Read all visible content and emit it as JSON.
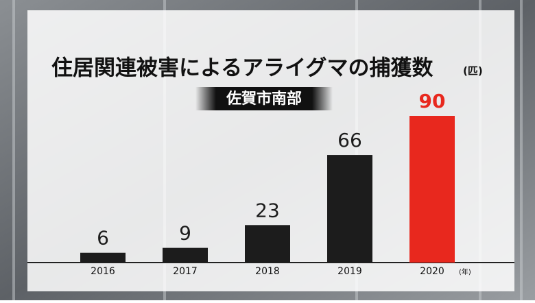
{
  "chart_data": {
    "type": "bar",
    "title": "住居関連被害によるアライグマの捕獲数",
    "y_unit": "(匹)",
    "subtitle": "佐賀市南部",
    "x_unit": "(年)",
    "categories": [
      "2016",
      "2017",
      "2018",
      "2019",
      "2020"
    ],
    "values": [
      6,
      9,
      23,
      66,
      90
    ],
    "colors": [
      "#1c1c1c",
      "#1c1c1c",
      "#1c1c1c",
      "#1c1c1c",
      "#e8281e"
    ]
  }
}
